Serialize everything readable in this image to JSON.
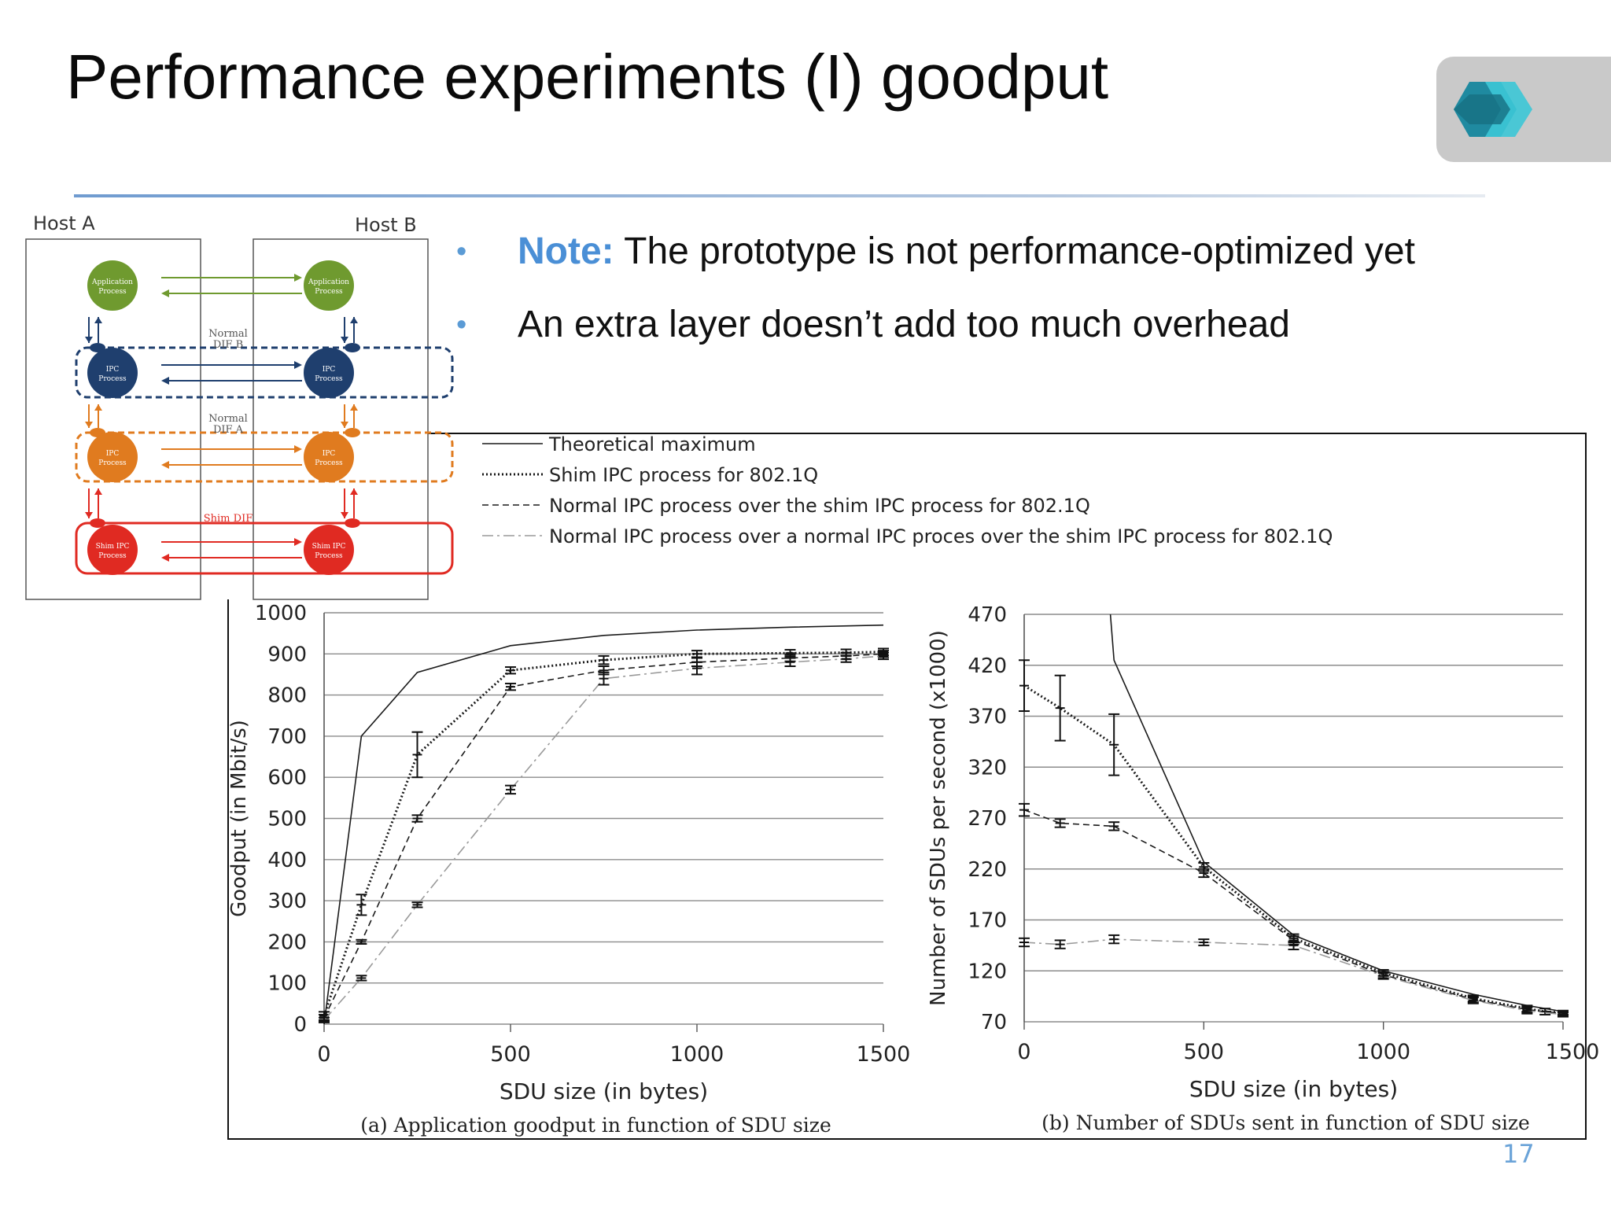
{
  "slide": {
    "title": "Performance experiments (I) goodput",
    "page_number": "17",
    "colors": {
      "accent": "#5b9bd5",
      "note": "#4a8fd6",
      "logo_bg": "#c9c9c9"
    }
  },
  "bullets": [
    {
      "highlight": "Note:",
      "text": " The prototype is not performance-optimized yet"
    },
    {
      "highlight": "",
      "text": "An extra layer doesn’t add too much overhead"
    }
  ],
  "diagram": {
    "host_a": "Host A",
    "host_b": "Host B",
    "layers": [
      {
        "name": "Application Process",
        "dif_label": "",
        "color": "#6f9a2f"
      },
      {
        "name": "IPC Process",
        "dif_label": "Normal DIF B",
        "color": "#1f3f6e"
      },
      {
        "name": "IPC Process",
        "dif_label": "Normal DIF A",
        "color": "#e07b1f"
      },
      {
        "name": "Shim IPC Process",
        "dif_label": "Shim DIF",
        "color": "#e02a22"
      }
    ]
  },
  "legend": [
    "Theoretical maximum",
    "Shim IPC process for 802.1Q",
    "Normal IPC process over the shim IPC process for 802.1Q",
    "Normal IPC process over a normal IPC proces over the shim IPC process for 802.1Q"
  ],
  "chart_data": [
    {
      "type": "line",
      "title": "(a) Application goodput in function of SDU size",
      "xlabel": "SDU size (in bytes)",
      "ylabel": "Goodput (in Mbit/s)",
      "xlim": [
        0,
        1500
      ],
      "ylim": [
        0,
        1000
      ],
      "xticks": [
        0,
        500,
        1000,
        1500
      ],
      "yticks": [
        0,
        100,
        200,
        300,
        400,
        500,
        600,
        700,
        800,
        900,
        1000
      ],
      "grid": true,
      "series": [
        {
          "name": "Theoretical maximum",
          "style": "solid",
          "x": [
            0,
            100,
            250,
            500,
            750,
            1000,
            1250,
            1500
          ],
          "y": [
            0,
            700,
            855,
            920,
            945,
            958,
            965,
            970
          ]
        },
        {
          "name": "Shim IPC process for 802.1Q",
          "style": "dotted",
          "x": [
            0,
            100,
            250,
            500,
            750,
            1000,
            1250,
            1400,
            1500
          ],
          "y": [
            20,
            290,
            655,
            860,
            885,
            900,
            902,
            903,
            905
          ],
          "err": [
            10,
            25,
            55,
            8,
            10,
            8,
            8,
            8,
            8
          ]
        },
        {
          "name": "Normal IPC process over the shim IPC process for 802.1Q",
          "style": "dashed",
          "x": [
            0,
            100,
            250,
            500,
            750,
            1000,
            1250,
            1400,
            1500
          ],
          "y": [
            15,
            200,
            500,
            820,
            860,
            880,
            890,
            895,
            900
          ],
          "err": [
            8,
            5,
            8,
            8,
            10,
            10,
            8,
            8,
            8
          ]
        },
        {
          "name": "Normal IPC process over a normal IPC proces over the shim IPC process for 802.1Q",
          "style": "dashdot",
          "x": [
            0,
            100,
            250,
            500,
            750,
            1000,
            1250,
            1400,
            1500
          ],
          "y": [
            10,
            112,
            290,
            570,
            840,
            865,
            880,
            888,
            895
          ],
          "err": [
            6,
            6,
            6,
            10,
            15,
            15,
            10,
            8,
            8
          ]
        }
      ]
    },
    {
      "type": "line",
      "title": "(b) Number of SDUs sent in function of SDU size",
      "xlabel": "SDU size (in bytes)",
      "ylabel": "Number of SDUs per second (x1000)",
      "xlim": [
        0,
        1500
      ],
      "ylim": [
        70,
        470
      ],
      "xticks": [
        0,
        500,
        1000,
        1500
      ],
      "yticks": [
        70,
        120,
        170,
        220,
        270,
        320,
        370,
        420,
        470
      ],
      "grid": true,
      "series": [
        {
          "name": "Theoretical maximum",
          "style": "solid",
          "x": [
            240,
            250,
            500,
            750,
            1000,
            1250,
            1400,
            1500
          ],
          "y": [
            470,
            425,
            227,
            155,
            120,
            97,
            86,
            80
          ]
        },
        {
          "name": "Shim IPC process for 802.1Q",
          "style": "dotted",
          "x": [
            0,
            100,
            250,
            500,
            750,
            1000,
            1250,
            1400,
            1450,
            1500
          ],
          "y": [
            400,
            378,
            342,
            222,
            152,
            118,
            93,
            83,
            80,
            79
          ],
          "err": [
            25,
            32,
            30,
            4,
            4,
            3,
            3,
            3,
            3,
            2
          ]
        },
        {
          "name": "Normal IPC process over the shim IPC process for 802.1Q",
          "style": "dashed",
          "x": [
            0,
            100,
            250,
            500,
            750,
            1000,
            1250,
            1400,
            1500
          ],
          "y": [
            278,
            265,
            262,
            216,
            150,
            116,
            92,
            82,
            78
          ],
          "err": [
            6,
            4,
            4,
            4,
            4,
            3,
            3,
            3,
            2
          ]
        },
        {
          "name": "Normal IPC process over a normal IPC proces over the shim IPC process for 802.1Q",
          "style": "dashdot",
          "x": [
            0,
            100,
            250,
            500,
            750,
            1000,
            1250,
            1400,
            1500
          ],
          "y": [
            148,
            146,
            151,
            148,
            145,
            115,
            91,
            81,
            77
          ],
          "err": [
            4,
            4,
            4,
            3,
            4,
            3,
            3,
            3,
            2
          ]
        }
      ]
    }
  ]
}
